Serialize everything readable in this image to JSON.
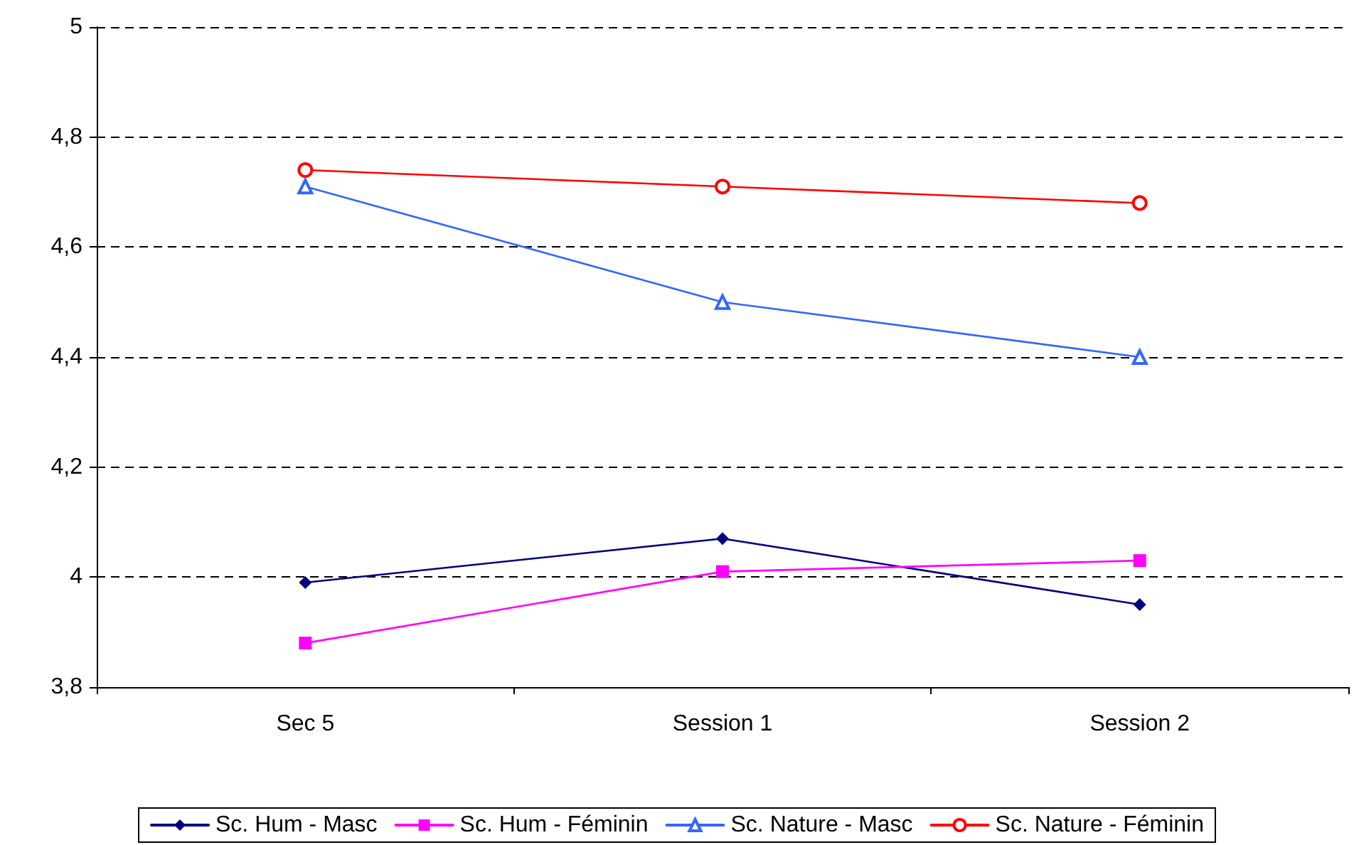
{
  "chart_data": {
    "type": "line",
    "categories": [
      "Sec 5",
      "Session 1",
      "Session 2"
    ],
    "series": [
      {
        "name": "Sc. Hum - Masc",
        "color": "#000080",
        "marker": "diamond",
        "values": [
          3.99,
          4.07,
          3.95
        ]
      },
      {
        "name": "Sc. Hum - Féminin",
        "color": "#ff00ff",
        "marker": "square",
        "values": [
          3.88,
          4.01,
          4.03
        ]
      },
      {
        "name": "Sc. Nature - Masc",
        "color": "#3366ff",
        "marker": "triangle",
        "values": [
          4.71,
          4.5,
          4.4
        ]
      },
      {
        "name": "Sc. Nature - Féminin",
        "color": "#ff0000",
        "marker": "circle",
        "values": [
          4.74,
          4.71,
          4.68
        ]
      }
    ],
    "ylim": [
      3.8,
      5
    ],
    "yticks": [
      {
        "value": 3.8,
        "label": "3,8"
      },
      {
        "value": 4,
        "label": "4"
      },
      {
        "value": 4.2,
        "label": "4,2"
      },
      {
        "value": 4.4,
        "label": "4,4"
      },
      {
        "value": 4.6,
        "label": "4,6"
      },
      {
        "value": 4.8,
        "label": "4,8"
      },
      {
        "value": 5,
        "label": "5"
      }
    ],
    "grid": "y",
    "legend": "bottom",
    "line_style": "solid"
  }
}
